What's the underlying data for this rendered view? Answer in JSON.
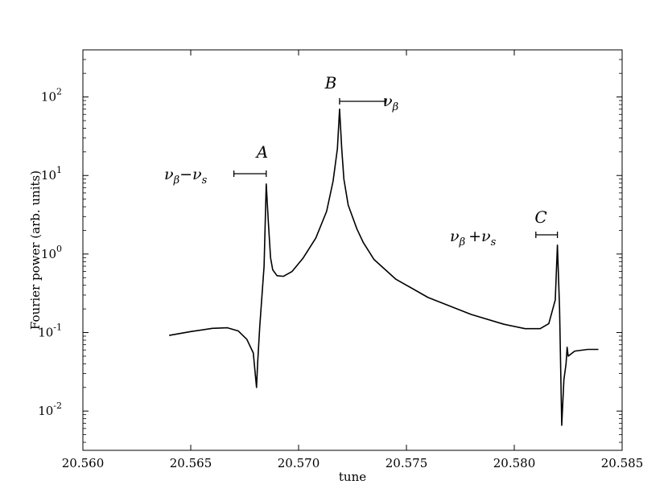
{
  "chart_data": {
    "type": "line",
    "title": "",
    "xlabel": "tune",
    "ylabel": "Fourier power (arb. units)",
    "xlim": [
      20.56,
      20.585
    ],
    "ylim_log10": [
      -2.5,
      2.6
    ],
    "yscale": "log",
    "grid": false,
    "x_ticks": [
      20.56,
      20.565,
      20.57,
      20.575,
      20.58,
      20.585
    ],
    "x_tick_labels": [
      "20.560",
      "20.565",
      "20.570",
      "20.575",
      "20.580",
      "20.585"
    ],
    "y_ticks": [
      {
        "base": "10",
        "exp": "-2",
        "value": 0.01
      },
      {
        "base": "10",
        "exp": "-1",
        "value": 0.1
      },
      {
        "base": "10",
        "exp": "0",
        "value": 1
      },
      {
        "base": "10",
        "exp": "1",
        "value": 10
      },
      {
        "base": "10",
        "exp": "2",
        "value": 100
      }
    ],
    "series": [
      {
        "color": "#000000",
        "x": [
          20.564,
          20.565,
          20.566,
          20.5667,
          20.5672,
          20.5676,
          20.5679,
          20.56805,
          20.5681,
          20.5682,
          20.5684,
          20.5685,
          20.5686,
          20.56865,
          20.5687,
          20.5688,
          20.569,
          20.5693,
          20.5697,
          20.5702,
          20.5708,
          20.5713,
          20.5716,
          20.5718,
          20.5719,
          20.572,
          20.5721,
          20.5723,
          20.5727,
          20.573,
          20.5735,
          20.5745,
          20.576,
          20.578,
          20.5795,
          20.5805,
          20.5812,
          20.5816,
          20.5819,
          20.582,
          20.5821,
          20.5822,
          20.5823,
          20.5824,
          20.58245,
          20.5825,
          20.5828,
          20.5834,
          20.5839
        ],
        "y": [
          0.092,
          0.103,
          0.113,
          0.115,
          0.105,
          0.082,
          0.055,
          0.02,
          0.04,
          0.12,
          0.7,
          7.8,
          2.5,
          1.5,
          0.9,
          0.63,
          0.53,
          0.52,
          0.6,
          0.88,
          1.6,
          3.5,
          8.5,
          22,
          70,
          22,
          9.0,
          4.2,
          2.1,
          1.4,
          0.85,
          0.48,
          0.28,
          0.17,
          0.128,
          0.112,
          0.112,
          0.13,
          0.26,
          1.3,
          0.2,
          0.0066,
          0.025,
          0.04,
          0.065,
          0.05,
          0.058,
          0.061,
          0.061
        ]
      }
    ],
    "annotations": [
      {
        "letter": "A",
        "expr": [
          "ν",
          "β",
          "−ν",
          "s"
        ],
        "range": [
          20.567,
          20.5685
        ]
      },
      {
        "letter": "B",
        "expr": [
          "ν",
          "β"
        ],
        "range": [
          20.5719,
          20.574
        ]
      },
      {
        "letter": "C",
        "expr": [
          "ν",
          "β",
          "+ν",
          "s"
        ],
        "range": [
          20.581,
          20.582
        ]
      }
    ]
  }
}
